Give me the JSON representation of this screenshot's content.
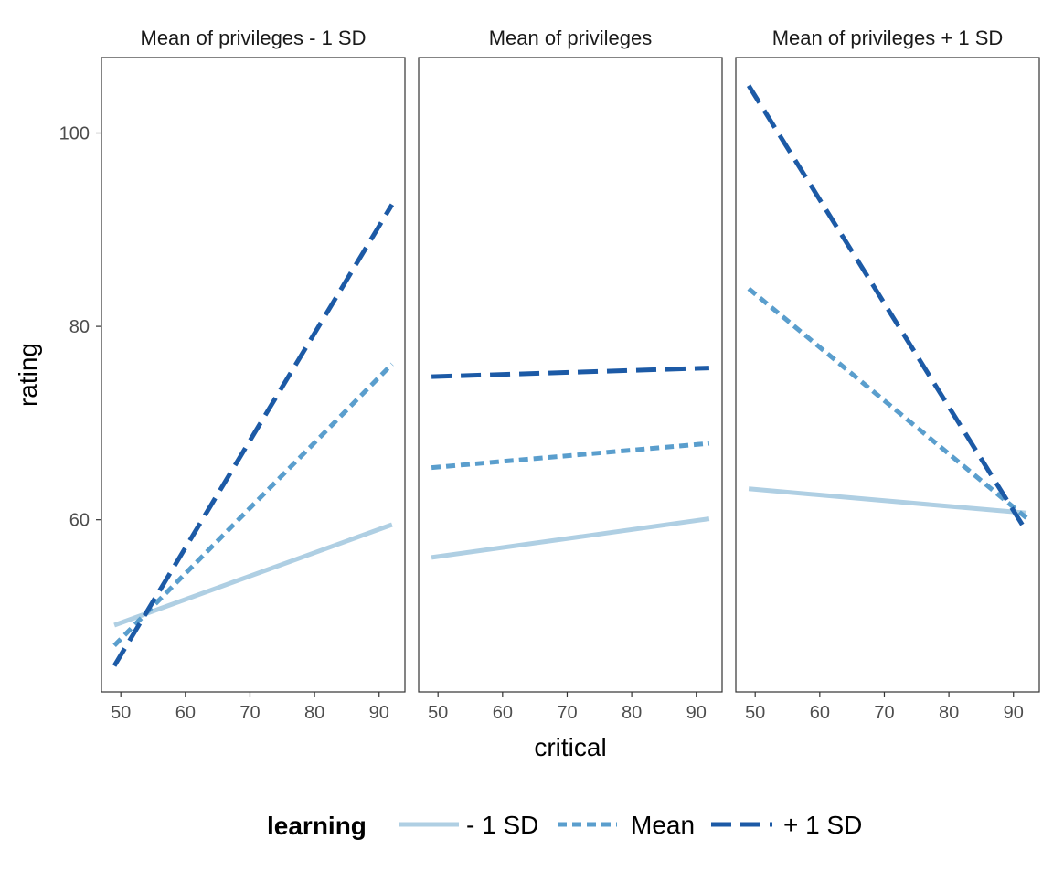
{
  "chart_data": {
    "type": "line",
    "xlabel": "critical",
    "ylabel": "rating",
    "facets": [
      "Mean of privileges - 1 SD",
      "Mean of privileges",
      "Mean of privileges + 1 SD"
    ],
    "xlim": [
      47,
      94
    ],
    "ylim": [
      42.2,
      107.8
    ],
    "xticks": [
      50,
      60,
      70,
      80,
      90
    ],
    "yticks": [
      60,
      80,
      100
    ],
    "grid": false,
    "legend": {
      "title": "learning",
      "position": "bottom",
      "items": [
        "- 1 SD",
        "Mean",
        "+ 1 SD"
      ]
    },
    "colors": {
      "- 1 SD": "#afcfe3",
      "Mean": "#5a9ecd",
      "+ 1 SD": "#1c5aa6"
    },
    "panels": [
      {
        "facet": "Mean of privileges - 1 SD",
        "series": [
          {
            "name": "- 1 SD",
            "x": [
              49,
              92
            ],
            "y": [
              49.1,
              59.5
            ]
          },
          {
            "name": "Mean",
            "x": [
              49,
              92
            ],
            "y": [
              47.0,
              76.1
            ]
          },
          {
            "name": "+ 1 SD",
            "x": [
              49,
              92
            ],
            "y": [
              44.9,
              92.6
            ]
          }
        ]
      },
      {
        "facet": "Mean of privileges",
        "series": [
          {
            "name": "- 1 SD",
            "x": [
              49,
              92
            ],
            "y": [
              56.1,
              60.1
            ]
          },
          {
            "name": "Mean",
            "x": [
              49,
              92
            ],
            "y": [
              65.4,
              67.9
            ]
          },
          {
            "name": "+ 1 SD",
            "x": [
              49,
              92
            ],
            "y": [
              74.8,
              75.7
            ]
          }
        ]
      },
      {
        "facet": "Mean of privileges + 1 SD",
        "series": [
          {
            "name": "- 1 SD",
            "x": [
              49,
              92
            ],
            "y": [
              63.2,
              60.7
            ]
          },
          {
            "name": "Mean",
            "x": [
              49,
              92
            ],
            "y": [
              83.9,
              60.2
            ]
          },
          {
            "name": "+ 1 SD",
            "x": [
              49,
              92
            ],
            "y": [
              104.9,
              58.8
            ]
          }
        ]
      }
    ]
  }
}
